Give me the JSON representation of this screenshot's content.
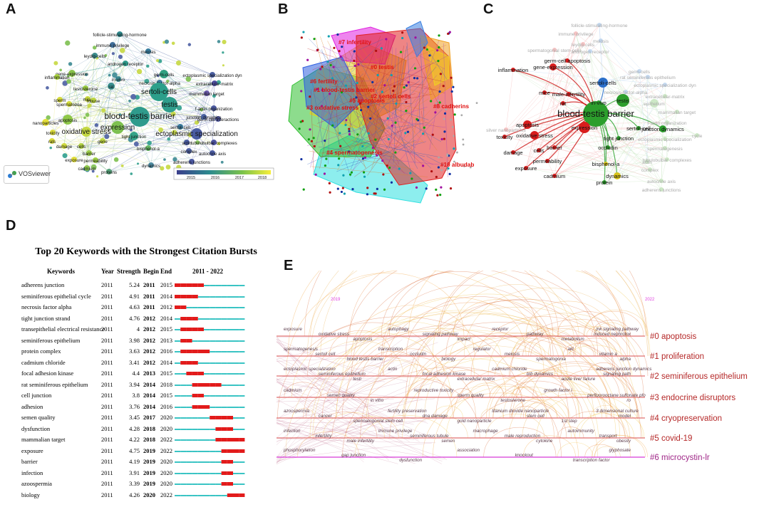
{
  "panels": {
    "A": "A",
    "B": "B",
    "C": "C",
    "D": "D",
    "E": "E"
  },
  "panelA": {
    "nodes": [
      {
        "label": "follicle-stimulating-hormone",
        "c": "#2f8a8e"
      },
      {
        "label": "immune privilege",
        "c": "#3f6f9a"
      },
      {
        "label": "meiosis",
        "c": "#3a7fa0"
      },
      {
        "label": "leydig-cells",
        "c": "#3b8b8c"
      },
      {
        "label": "androgen receptor",
        "c": "#2e9a8a"
      },
      {
        "label": "germ-cells",
        "c": "#31a080"
      },
      {
        "label": "gene-expression",
        "c": "#88c24a"
      },
      {
        "label": "inflammation",
        "c": "#a7cf3f"
      },
      {
        "label": "ectoplasmic specialization dyn",
        "c": "#4a5ea0"
      },
      {
        "label": "necrosis-factor-alpha",
        "c": "#3f7ba0"
      },
      {
        "label": "testosterone",
        "c": "#9acb44"
      },
      {
        "label": "extracellular-matrix",
        "c": "#4f4fa0"
      },
      {
        "label": "sertoli-cells",
        "c": "#2c9f8a"
      },
      {
        "label": "rat",
        "c": "#3a8f8e"
      },
      {
        "label": "in-vivo",
        "c": "#3c8a92"
      },
      {
        "label": "mammalian target",
        "c": "#6a5aa8"
      },
      {
        "label": "f-actin organization",
        "c": "#4c5aa0"
      },
      {
        "label": "sperm",
        "c": "#d6dc3a"
      },
      {
        "label": "mice",
        "c": "#c7d840"
      },
      {
        "label": "mouse",
        "c": "#bcd640"
      },
      {
        "label": "testis",
        "c": "#2f9e8c"
      },
      {
        "label": "spermatozoa",
        "c": "#d2da3c"
      },
      {
        "label": "germ cell interactions",
        "c": "#5058a2"
      },
      {
        "label": "apoptosis",
        "c": "#8fc848"
      },
      {
        "label": "junction dynamics",
        "c": "#4b63a4"
      },
      {
        "label": "nanoparticles",
        "c": "#e5e03a"
      },
      {
        "label": "blood-testis barrier",
        "c": "#2f9b8c"
      },
      {
        "label": "expression",
        "c": "#7dc050"
      },
      {
        "label": "sertoli-cell",
        "c": "#3c7ea0"
      },
      {
        "label": "toxicity",
        "c": "#dcdc3c"
      },
      {
        "label": "oxidative stress",
        "c": "#c4d842"
      },
      {
        "label": "tight junction",
        "c": "#35a588"
      },
      {
        "label": "ectoplasmic specialization",
        "c": "#4a5ca2"
      },
      {
        "label": "rats",
        "c": "#d8da3c"
      },
      {
        "label": "tubulobulbar complexes",
        "c": "#4f55a2"
      },
      {
        "label": "damage",
        "c": "#cfd93e"
      },
      {
        "label": "cells",
        "c": "#b2d344"
      },
      {
        "label": "gene",
        "c": "#c0d742"
      },
      {
        "label": "barrier",
        "c": "#9bcc46"
      },
      {
        "label": "complex",
        "c": "#4d62a3"
      },
      {
        "label": "actin",
        "c": "#4b5ea2"
      },
      {
        "label": "bisphenol-a",
        "c": "#64b564"
      },
      {
        "label": "permeability",
        "c": "#9ecd46"
      },
      {
        "label": "autocrine axis",
        "c": "#4b5ba2"
      },
      {
        "label": "exposure",
        "c": "#e1de3a"
      },
      {
        "label": "cadmium",
        "c": "#8cc64a"
      },
      {
        "label": "dynamics",
        "c": "#4d8aa0"
      },
      {
        "label": "proteins",
        "c": "#56a37a"
      },
      {
        "label": "adherens junctions",
        "c": "#4b58a2"
      }
    ],
    "legend": {
      "ticks": [
        "2015",
        "2016",
        "2017",
        "2018"
      ]
    },
    "vosviewer": "VOSviewer"
  },
  "panelB": {
    "clusters": [
      {
        "label": "#7 infertility",
        "c": "#e020e0"
      },
      {
        "label": "#0 testis",
        "c": "#e02020"
      },
      {
        "label": "#6 fertility",
        "c": "#a0d020"
      },
      {
        "label": "#1 blood-testis barrier",
        "c": "#f0a020"
      },
      {
        "label": "#2 sertoli cells",
        "c": "#f0d020"
      },
      {
        "label": "#5 apoptosis",
        "c": "#3060e0"
      },
      {
        "label": "#3 oxidative stress",
        "c": "#30c030"
      },
      {
        "label": "#8 cadherins",
        "c": "#808080"
      },
      {
        "label": "#4 spermatogenesis",
        "c": "#20c0e0"
      },
      {
        "label": "#10 albudab",
        "c": "#808080"
      }
    ]
  },
  "panelC": {
    "nodes": [
      {
        "label": "follicle-stimulating-hormone",
        "hl": false
      },
      {
        "label": "immune privilege",
        "hl": false
      },
      {
        "label": "meiosis",
        "hl": false
      },
      {
        "label": "leydig-cells",
        "hl": false
      },
      {
        "label": "androgen receptor",
        "hl": false
      },
      {
        "label": "spermatogonial stem-cells",
        "hl": false
      },
      {
        "label": "germ-cell apoptosis",
        "hl": true
      },
      {
        "label": "gene-expression",
        "hl": true
      },
      {
        "label": "germ-cells",
        "hl": false
      },
      {
        "label": "rat seminiferous epithelium",
        "hl": false
      },
      {
        "label": "inflammation",
        "hl": true
      },
      {
        "label": "ectoplasmic specialization dyn",
        "hl": false
      },
      {
        "label": "necrosis-factor-alpha",
        "hl": false
      },
      {
        "label": "extracellular-matrix",
        "hl": false
      },
      {
        "label": "sertoli-cells",
        "hl": true
      },
      {
        "label": "mice",
        "hl": true
      },
      {
        "label": "male-infertility",
        "hl": true
      },
      {
        "label": "in-vivo",
        "hl": true
      },
      {
        "label": "testis",
        "hl": true
      },
      {
        "label": "rat",
        "hl": true
      },
      {
        "label": "epithelium",
        "hl": false
      },
      {
        "label": "mammalian target",
        "hl": false
      },
      {
        "label": "f-actin organization",
        "hl": false
      },
      {
        "label": "blood-testis barrier",
        "hl": true
      },
      {
        "label": "junction dynamics",
        "hl": true
      },
      {
        "label": "apoptosis",
        "hl": true
      },
      {
        "label": "expression",
        "hl": true
      },
      {
        "label": "sertoli-cell",
        "hl": true
      },
      {
        "label": "silver nanoparticles",
        "hl": false
      },
      {
        "label": "toxicity",
        "hl": true
      },
      {
        "label": "oxidative stress",
        "hl": true
      },
      {
        "label": "tight junction",
        "hl": true
      },
      {
        "label": "ectoplasmic specialization",
        "hl": false
      },
      {
        "label": "damage",
        "hl": true
      },
      {
        "label": "cells",
        "hl": true
      },
      {
        "label": "occludin",
        "hl": true
      },
      {
        "label": "barrier",
        "hl": true
      },
      {
        "label": "permeability",
        "hl": true
      },
      {
        "label": "spermatogenesis",
        "hl": false
      },
      {
        "label": "bisphenol-a",
        "hl": true
      },
      {
        "label": "actin",
        "hl": false
      },
      {
        "label": "complex",
        "hl": false
      },
      {
        "label": "autocrine axis",
        "hl": false
      },
      {
        "label": "exposure",
        "hl": true
      },
      {
        "label": "cadmium",
        "hl": true
      },
      {
        "label": "dynamics",
        "hl": true
      },
      {
        "label": "protein",
        "hl": true
      },
      {
        "label": "adherens junctions",
        "hl": false
      },
      {
        "label": "tubulobulbar complexes",
        "hl": false
      },
      {
        "label": "cycle",
        "hl": false
      }
    ]
  },
  "panelD": {
    "title": "Top 20 Keywords with the Strongest Citation Bursts",
    "headers": {
      "keywords": "Keywords",
      "year": "Year",
      "strength": "Strength",
      "begin": "Begin",
      "end": "End",
      "range": "2011 - 2022"
    },
    "rows": [
      {
        "keyword": "adherens junction",
        "year": "2011",
        "strength": "5.24",
        "begin": "2011",
        "end": "2015"
      },
      {
        "keyword": "seminiferous epithelial cycle",
        "year": "2011",
        "strength": "4.91",
        "begin": "2011",
        "end": "2014"
      },
      {
        "keyword": "necrosis factor alpha",
        "year": "2011",
        "strength": "4.63",
        "begin": "2011",
        "end": "2012"
      },
      {
        "keyword": "tight junction strand",
        "year": "2011",
        "strength": "4.76",
        "begin": "2012",
        "end": "2014"
      },
      {
        "keyword": "transepithelial electrical resistance",
        "year": "2011",
        "strength": "4",
        "begin": "2012",
        "end": "2015"
      },
      {
        "keyword": "seminiferous epithelium",
        "year": "2011",
        "strength": "3.98",
        "begin": "2012",
        "end": "2013"
      },
      {
        "keyword": "protein complex",
        "year": "2011",
        "strength": "3.63",
        "begin": "2012",
        "end": "2016"
      },
      {
        "keyword": "cadmium chloride",
        "year": "2011",
        "strength": "3.41",
        "begin": "2012",
        "end": "2014"
      },
      {
        "keyword": "focal adhesion kinase",
        "year": "2011",
        "strength": "4.4",
        "begin": "2013",
        "end": "2015"
      },
      {
        "keyword": "rat seminiferous epithelium",
        "year": "2011",
        "strength": "3.94",
        "begin": "2014",
        "end": "2018"
      },
      {
        "keyword": "cell junction",
        "year": "2011",
        "strength": "3.8",
        "begin": "2014",
        "end": "2015"
      },
      {
        "keyword": "adhesion",
        "year": "2011",
        "strength": "3.76",
        "begin": "2014",
        "end": "2016"
      },
      {
        "keyword": "semen quality",
        "year": "2011",
        "strength": "3.45",
        "begin": "2017",
        "end": "2020"
      },
      {
        "keyword": "dysfunction",
        "year": "2011",
        "strength": "4.28",
        "begin": "2018",
        "end": "2020"
      },
      {
        "keyword": "mammalian target",
        "year": "2011",
        "strength": "4.22",
        "begin": "2018",
        "end": "2022"
      },
      {
        "keyword": "exposure",
        "year": "2011",
        "strength": "4.75",
        "begin": "2019",
        "end": "2022"
      },
      {
        "keyword": "barrier",
        "year": "2011",
        "strength": "4.19",
        "begin": "2019",
        "end": "2020"
      },
      {
        "keyword": "infection",
        "year": "2011",
        "strength": "3.91",
        "begin": "2019",
        "end": "2020"
      },
      {
        "keyword": "azoospermia",
        "year": "2011",
        "strength": "3.39",
        "begin": "2019",
        "end": "2020"
      },
      {
        "keyword": "biology",
        "year": "2011",
        "strength": "4.26",
        "begin": "2020",
        "end": "2022"
      }
    ]
  },
  "panelE": {
    "yearStart": "2019",
    "yearEnd": "2022",
    "clusters": [
      {
        "label": "#0 apoptosis",
        "c": "#b52828"
      },
      {
        "label": "#1 proliferation",
        "c": "#b52828"
      },
      {
        "label": "#2 seminiferous epithelium",
        "c": "#b52828"
      },
      {
        "label": "#3 endocrine disruptors",
        "c": "#b52828"
      },
      {
        "label": "#4 cryopreservation",
        "c": "#b52828"
      },
      {
        "label": "#5 covid-19",
        "c": "#b52828"
      },
      {
        "label": "#6 microcystin-lr",
        "c": "#a02888"
      }
    ],
    "terms": [
      {
        "t": "exposure",
        "row": 0
      },
      {
        "t": "oxidative stress",
        "row": 0
      },
      {
        "t": "apoptosis",
        "row": 0
      },
      {
        "t": "autophagy",
        "row": 0
      },
      {
        "t": "signaling pathway",
        "row": 0
      },
      {
        "t": "impact",
        "row": 0
      },
      {
        "t": "receptor",
        "row": 0
      },
      {
        "t": "pathway",
        "row": 0
      },
      {
        "t": "metabolism",
        "row": 0
      },
      {
        "t": "jnk signaling pathway",
        "row": 0
      },
      {
        "t": "induced nephrotox",
        "row": 0
      },
      {
        "t": "spermatogenesis",
        "row": 1
      },
      {
        "t": "sertoli cell",
        "row": 1
      },
      {
        "t": "blood testis barrier",
        "row": 1
      },
      {
        "t": "transcription",
        "row": 1
      },
      {
        "t": "occludin",
        "row": 1
      },
      {
        "t": "biology",
        "row": 1
      },
      {
        "t": "regulator",
        "row": 1
      },
      {
        "t": "meiosis",
        "row": 1
      },
      {
        "t": "spermatogonia",
        "row": 1
      },
      {
        "t": "akt",
        "row": 1
      },
      {
        "t": "vitamin a",
        "row": 1
      },
      {
        "t": "alpha",
        "row": 1
      },
      {
        "t": "ectoplasmic specialization",
        "row": 2
      },
      {
        "t": "seminiferous epithelium",
        "row": 2
      },
      {
        "t": "testi",
        "row": 2
      },
      {
        "t": "actin",
        "row": 2
      },
      {
        "t": "focal adhesion kinase",
        "row": 2
      },
      {
        "t": "extracellular matrix",
        "row": 2
      },
      {
        "t": "cadmium chloride",
        "row": 2
      },
      {
        "t": "btb dynamics",
        "row": 2
      },
      {
        "t": "acute liver failure",
        "row": 2
      },
      {
        "t": "adherens junction dynamics",
        "row": 2
      },
      {
        "t": "signaling path",
        "row": 2
      },
      {
        "t": "cadmium",
        "row": 3
      },
      {
        "t": "semen quality",
        "row": 3
      },
      {
        "t": "in vitro",
        "row": 3
      },
      {
        "t": "reproductive toxicity",
        "row": 3
      },
      {
        "t": "sperm quality",
        "row": 3
      },
      {
        "t": "testosterone",
        "row": 3
      },
      {
        "t": "growth factor i",
        "row": 3
      },
      {
        "t": "perfluorooctane sulfonate pfo",
        "row": 3
      },
      {
        "t": "ro",
        "row": 3
      },
      {
        "t": "azoospermia",
        "row": 4
      },
      {
        "t": "cancer",
        "row": 4
      },
      {
        "t": "spermatogonial stem cell",
        "row": 4
      },
      {
        "t": "fertility preservation",
        "row": 4
      },
      {
        "t": "dna damage",
        "row": 4
      },
      {
        "t": "gold nanoparticle",
        "row": 4
      },
      {
        "t": "titanium dioxide nanoparticle",
        "row": 4
      },
      {
        "t": "stem cell",
        "row": 4
      },
      {
        "t": "1st step",
        "row": 4
      },
      {
        "t": "3 dimensional culture",
        "row": 4
      },
      {
        "t": "model",
        "row": 4
      },
      {
        "t": "infection",
        "row": 5
      },
      {
        "t": "infertility",
        "row": 5
      },
      {
        "t": "male infertility",
        "row": 5
      },
      {
        "t": "immune privilege",
        "row": 5
      },
      {
        "t": "seminiferous tubule",
        "row": 5
      },
      {
        "t": "semen",
        "row": 5
      },
      {
        "t": "macrophage",
        "row": 5
      },
      {
        "t": "male reproduction",
        "row": 5
      },
      {
        "t": "cytokine",
        "row": 5
      },
      {
        "t": "autoimmunity",
        "row": 5
      },
      {
        "t": "transport",
        "row": 5
      },
      {
        "t": "obesity",
        "row": 5
      },
      {
        "t": "phosphorylation",
        "row": 6
      },
      {
        "t": "gap junction",
        "row": 6
      },
      {
        "t": "dysfunction",
        "row": 6
      },
      {
        "t": "association",
        "row": 6
      },
      {
        "t": "knockout",
        "row": 6
      },
      {
        "t": "transcription factor",
        "row": 6
      },
      {
        "t": "glyphosate",
        "row": 6
      }
    ]
  },
  "chart_data": [
    {
      "type": "network",
      "title": "VOSviewer keyword overlay map (A)",
      "legend": {
        "min": 2015,
        "max": 2018
      }
    },
    {
      "type": "network",
      "title": "CiteSpace keyword clusters (B)",
      "clusters": [
        "#0 testis",
        "#1 blood-testis barrier",
        "#2 sertoli cells",
        "#3 oxidative stress",
        "#4 spermatogenesis",
        "#5 apoptosis",
        "#6 fertility",
        "#7 infertility",
        "#8 cadherins",
        "#10 albudab"
      ]
    },
    {
      "type": "network",
      "title": "blood-testis barrier co-occurrence (C)"
    },
    {
      "type": "table",
      "title": "Top 20 Keywords with the Strongest Citation Bursts",
      "range": [
        2011,
        2022
      ]
    },
    {
      "type": "timeline",
      "title": "Keyword cluster timeline (E)",
      "x": [
        2019,
        2022
      ],
      "clusters": [
        "#0 apoptosis",
        "#1 proliferation",
        "#2 seminiferous epithelium",
        "#3 endocrine disruptors",
        "#4 cryopreservation",
        "#5 covid-19",
        "#6 microcystin-lr"
      ]
    }
  ]
}
